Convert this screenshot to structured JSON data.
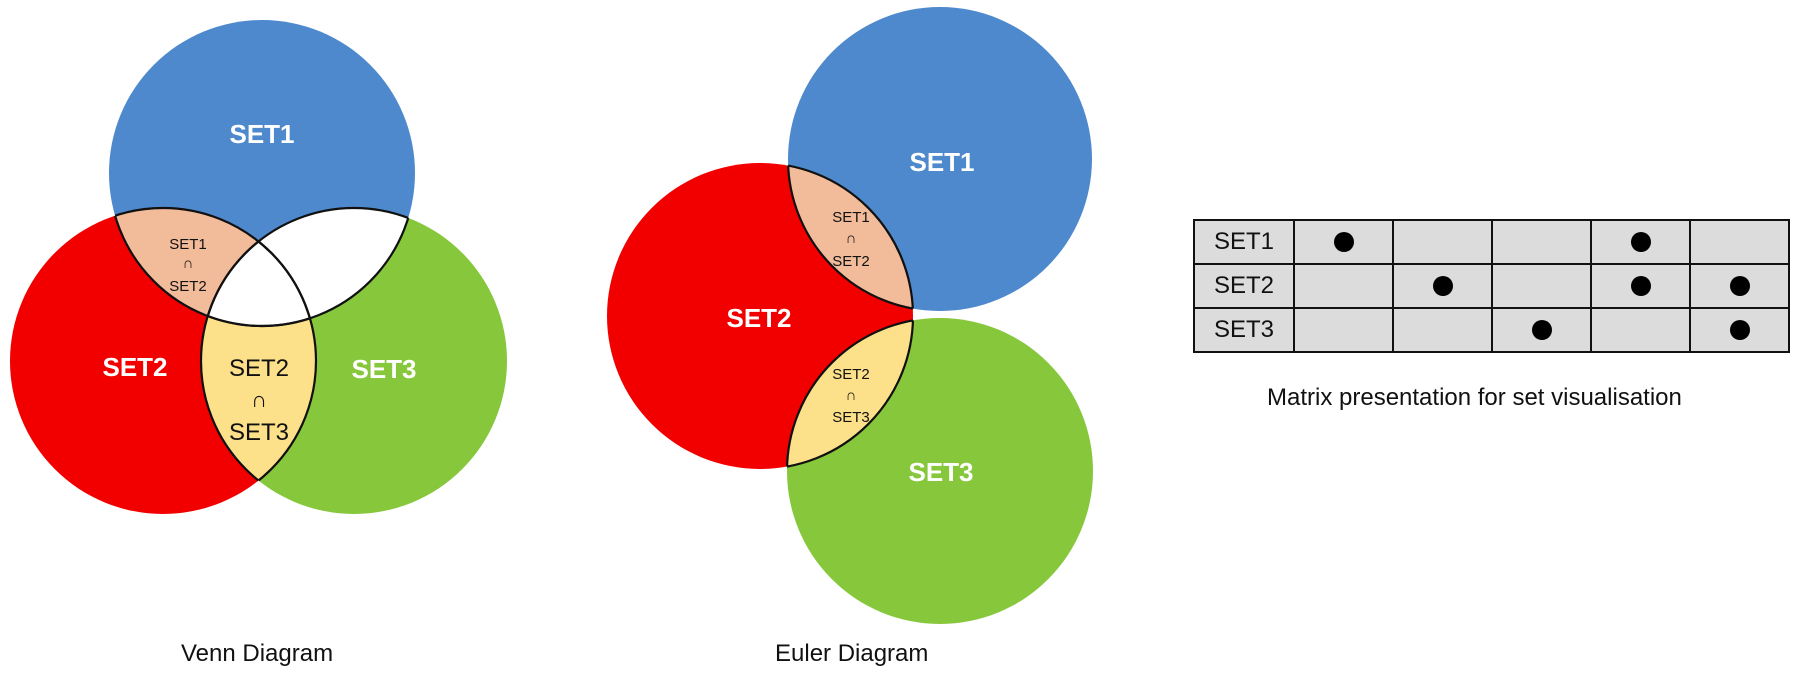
{
  "venn": {
    "caption": "Venn Diagram",
    "set1": "SET1",
    "set2": "SET2",
    "set3": "SET3",
    "inter12": [
      "SET1",
      "∩",
      "SET2"
    ],
    "inter23": [
      "SET2",
      "∩",
      "SET3"
    ],
    "colors": {
      "set1": "#4e89cd",
      "set2": "#f20000",
      "set3": "#86c73b",
      "inter12": "#f2bb9a",
      "inter23": "#fde08a",
      "inter13": "#ffffff"
    }
  },
  "euler": {
    "caption": "Euler Diagram",
    "set1": "SET1",
    "set2": "SET2",
    "set3": "SET3",
    "inter12": [
      "SET1",
      "∩",
      "SET2"
    ],
    "inter23": [
      "SET2",
      "∩",
      "SET3"
    ]
  },
  "matrix": {
    "caption": "Matrix presentation for set visualisation",
    "rows": [
      {
        "label": "SET1",
        "cells": [
          true,
          false,
          false,
          true,
          false
        ]
      },
      {
        "label": "SET2",
        "cells": [
          false,
          true,
          false,
          true,
          true
        ]
      },
      {
        "label": "SET3",
        "cells": [
          false,
          false,
          true,
          false,
          true
        ]
      }
    ]
  }
}
